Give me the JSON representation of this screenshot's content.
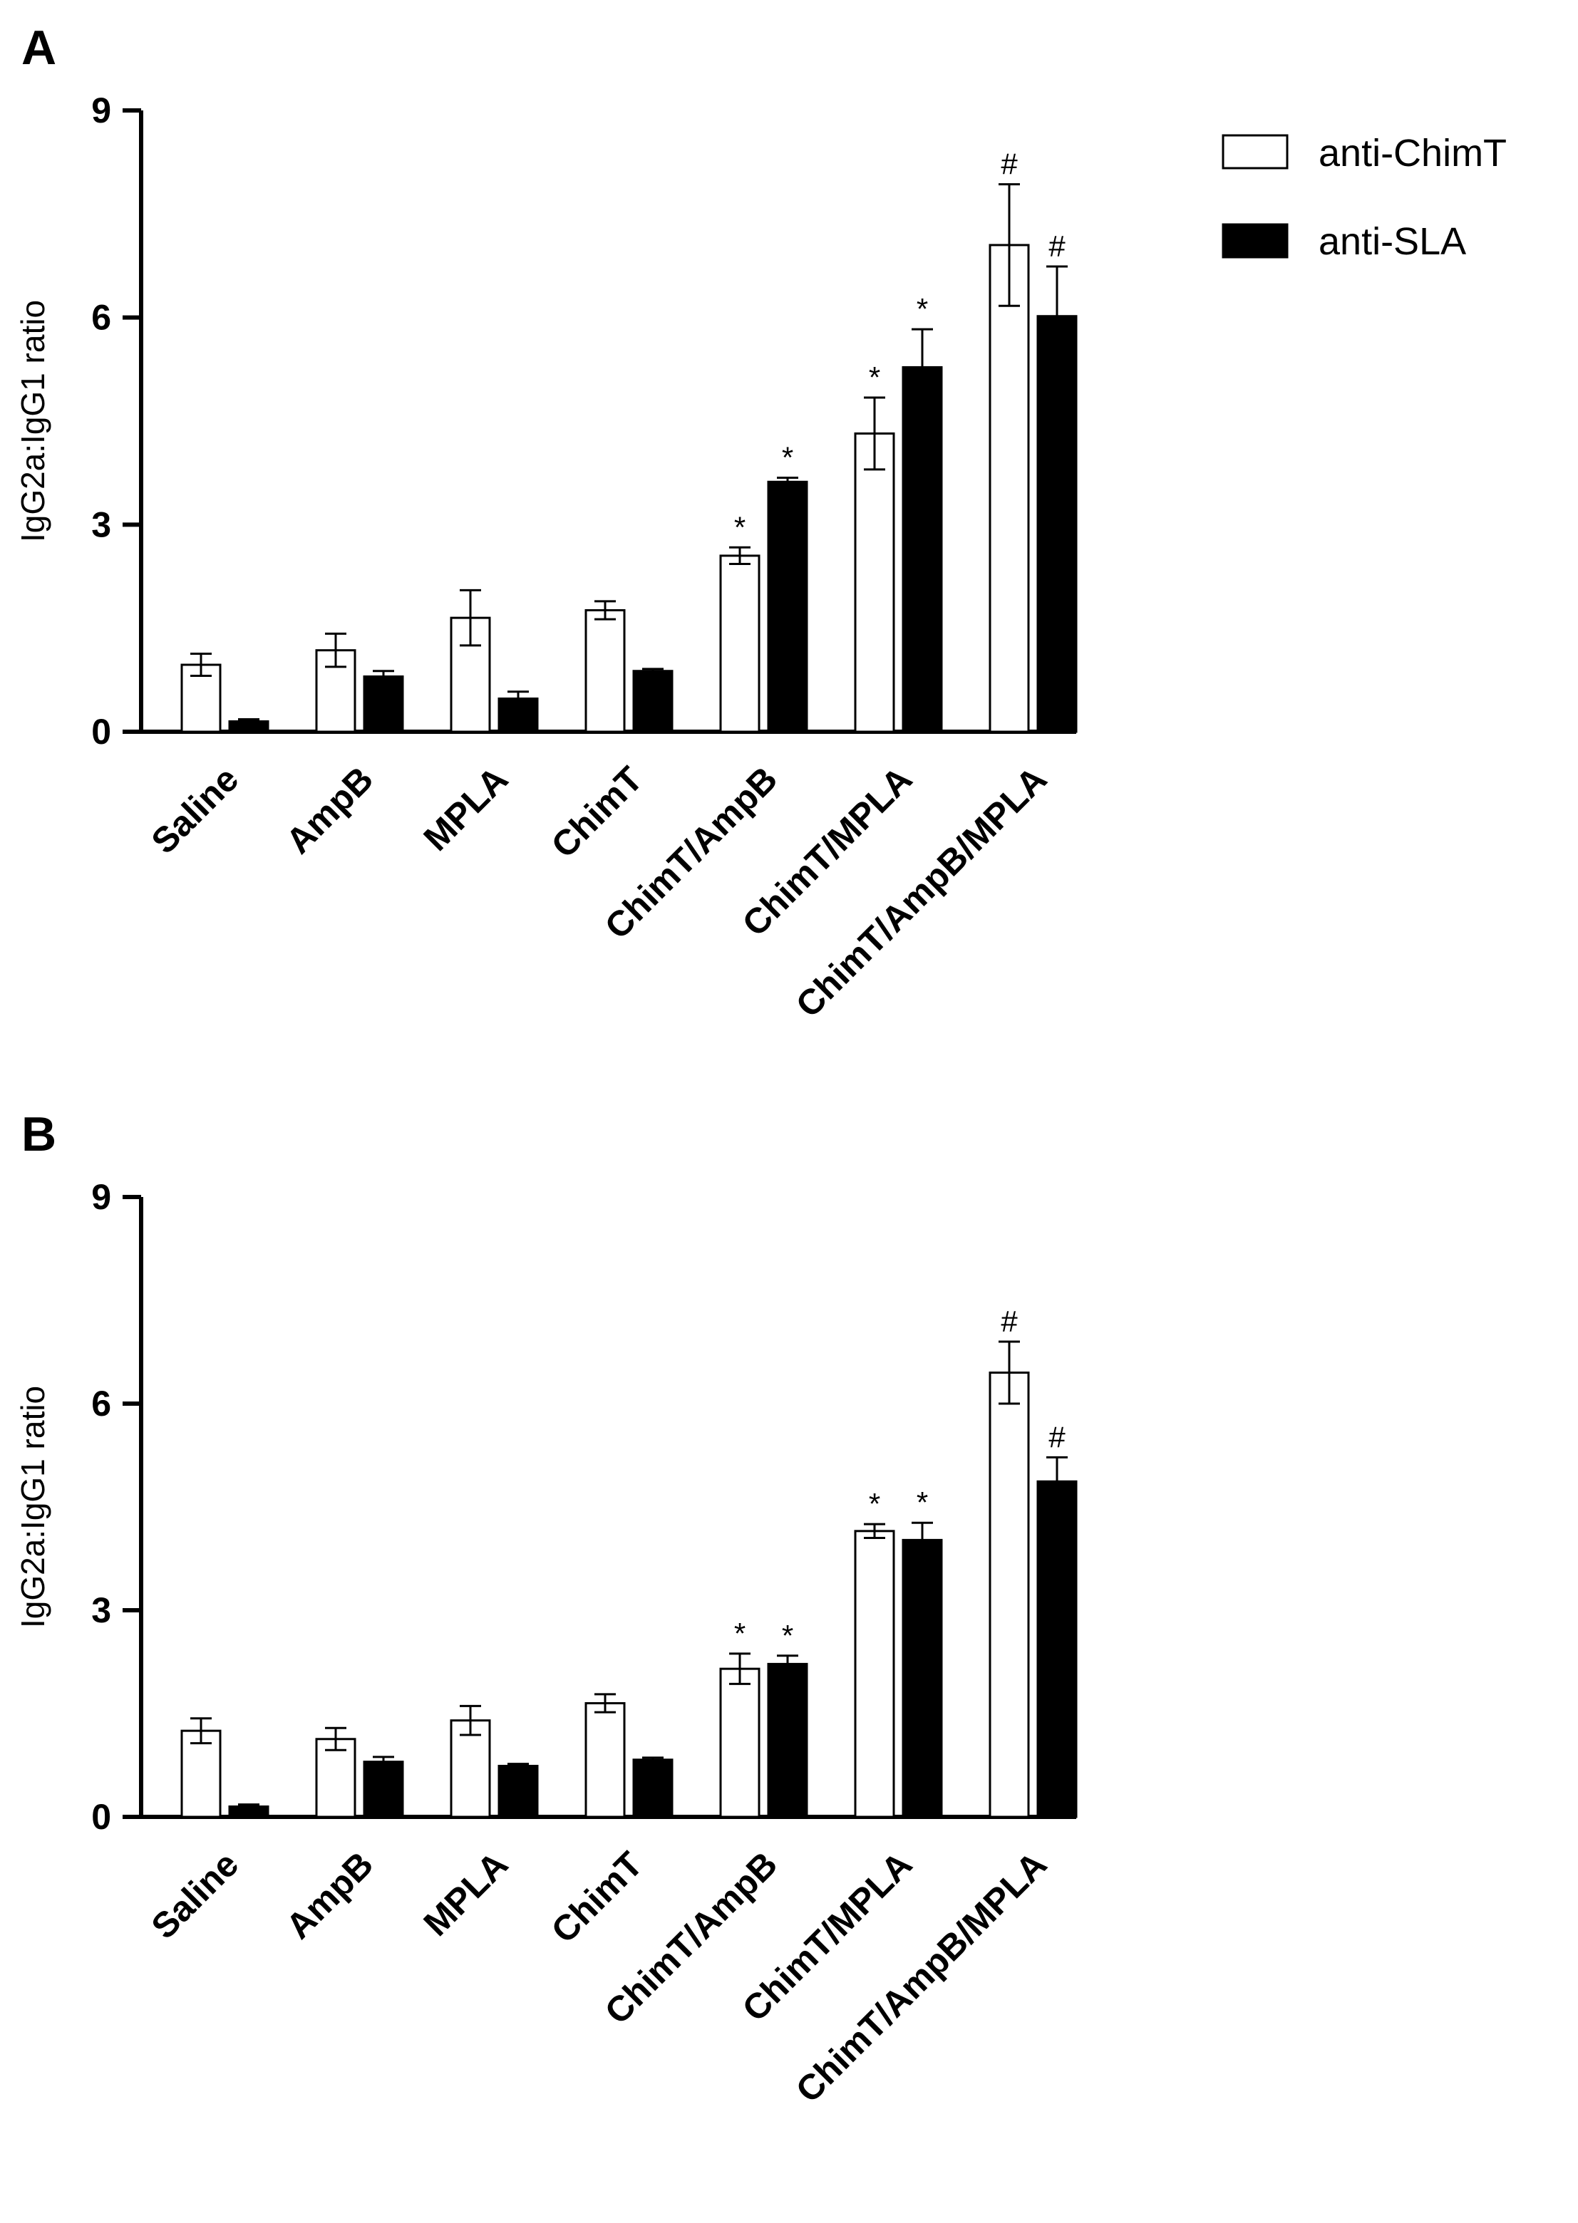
{
  "legend": [
    {
      "name": "anti-ChimT",
      "fill": "#ffffff"
    },
    {
      "name": "anti-SLA",
      "fill": "#000000"
    }
  ],
  "chart_data": [
    {
      "panel": "A",
      "type": "bar",
      "title": "",
      "xlabel": "",
      "ylabel": "IgG2a:IgG1 ratio",
      "ylim": [
        0,
        9
      ],
      "yticks": [
        0,
        3,
        6,
        9
      ],
      "categories": [
        "Saline",
        "AmpB",
        "MPLA",
        "ChimT",
        "ChimT/AmpB",
        "ChimT/MPLA",
        "ChimT/AmpB/MPLA"
      ],
      "series": [
        {
          "name": "anti-ChimT",
          "color": "#ffffff",
          "values": [
            0.97,
            1.18,
            1.65,
            1.76,
            2.55,
            4.32,
            7.05
          ],
          "errors": [
            0.16,
            0.24,
            0.4,
            0.13,
            0.12,
            0.52,
            0.88
          ],
          "annotations": [
            "",
            "",
            "",
            "",
            "*",
            "*",
            "#"
          ]
        },
        {
          "name": "anti-SLA",
          "color": "#000000",
          "values": [
            0.15,
            0.8,
            0.48,
            0.88,
            3.62,
            5.28,
            6.02
          ],
          "errors": [
            0.03,
            0.08,
            0.1,
            0.03,
            0.06,
            0.55,
            0.72
          ],
          "annotations": [
            "",
            "",
            "",
            "",
            "*",
            "*",
            "#"
          ]
        }
      ]
    },
    {
      "panel": "B",
      "type": "bar",
      "title": "",
      "xlabel": "",
      "ylabel": "IgG2a:IgG1 ratio",
      "ylim": [
        0,
        9
      ],
      "yticks": [
        0,
        3,
        6,
        9
      ],
      "categories": [
        "Saline",
        "AmpB",
        "MPLA",
        "ChimT",
        "ChimT/AmpB",
        "ChimT/MPLA",
        "ChimT/AmpB/MPLA"
      ],
      "series": [
        {
          "name": "anti-ChimT",
          "color": "#ffffff",
          "values": [
            1.25,
            1.13,
            1.4,
            1.65,
            2.15,
            4.15,
            6.45
          ],
          "errors": [
            0.18,
            0.16,
            0.21,
            0.13,
            0.22,
            0.1,
            0.45
          ],
          "annotations": [
            "",
            "",
            "",
            "",
            "*",
            "*",
            "#"
          ]
        },
        {
          "name": "anti-SLA",
          "color": "#000000",
          "values": [
            0.15,
            0.8,
            0.74,
            0.83,
            2.22,
            4.02,
            4.87
          ],
          "errors": [
            0.03,
            0.07,
            0.03,
            0.03,
            0.12,
            0.25,
            0.35
          ],
          "annotations": [
            "",
            "",
            "",
            "",
            "*",
            "*",
            "#"
          ]
        }
      ]
    }
  ]
}
